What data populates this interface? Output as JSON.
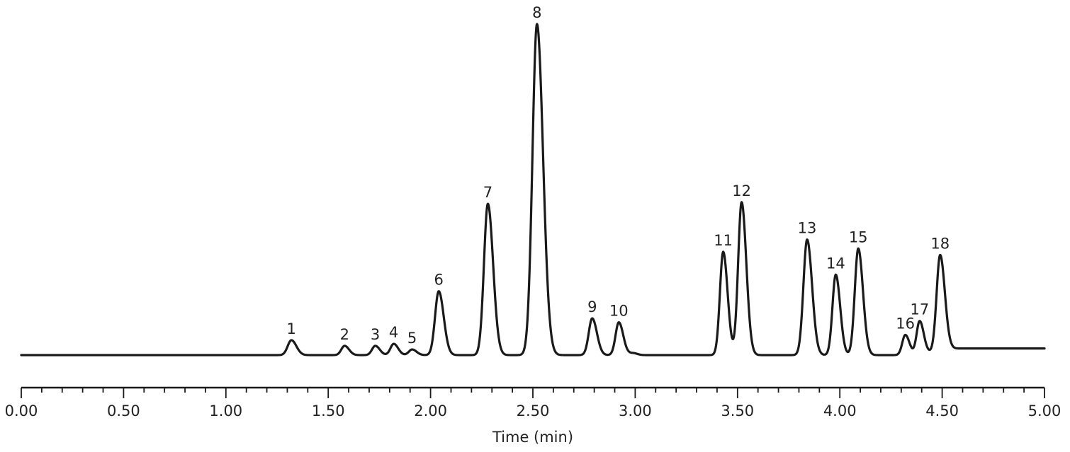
{
  "chart_data": {
    "type": "line",
    "title": "",
    "xlabel": "Time (min)",
    "ylabel": "",
    "xlim": [
      0.0,
      5.0
    ],
    "x_major_ticks": [
      0.0,
      0.5,
      1.0,
      1.5,
      2.0,
      2.5,
      3.0,
      3.5,
      4.0,
      4.5,
      5.0
    ],
    "x_tick_labels": [
      "0.00",
      "0.50",
      "1.00",
      "1.50",
      "2.00",
      "2.50",
      "3.00",
      "3.50",
      "4.00",
      "4.50",
      "5.00"
    ],
    "x_minor_tick_step": 0.1,
    "grid": false,
    "legend": null,
    "y_axis_visible": false,
    "baseline_relative": 0.0,
    "tail_baseline_relative": 0.02,
    "peaks": [
      {
        "label": "1",
        "time": 1.32,
        "height": 0.045,
        "width": 0.018
      },
      {
        "label": "2",
        "time": 1.58,
        "height": 0.028,
        "width": 0.016
      },
      {
        "label": "3",
        "time": 1.73,
        "height": 0.028,
        "width": 0.016
      },
      {
        "label": "4",
        "time": 1.82,
        "height": 0.034,
        "width": 0.016
      },
      {
        "label": "5",
        "time": 1.91,
        "height": 0.017,
        "width": 0.016
      },
      {
        "label": "6",
        "time": 2.04,
        "height": 0.193,
        "width": 0.018
      },
      {
        "label": "7",
        "time": 2.28,
        "height": 0.457,
        "width": 0.019
      },
      {
        "label": "8",
        "time": 2.52,
        "height": 1.0,
        "width": 0.022
      },
      {
        "label": "9",
        "time": 2.79,
        "height": 0.111,
        "width": 0.017
      },
      {
        "label": "10",
        "time": 2.92,
        "height": 0.099,
        "width": 0.016
      },
      {
        "label": "11",
        "time": 3.43,
        "height": 0.312,
        "width": 0.016
      },
      {
        "label": "12",
        "time": 3.52,
        "height": 0.462,
        "width": 0.017
      },
      {
        "label": "13",
        "time": 3.84,
        "height": 0.349,
        "width": 0.018
      },
      {
        "label": "14",
        "time": 3.98,
        "height": 0.243,
        "width": 0.016
      },
      {
        "label": "15",
        "time": 4.09,
        "height": 0.322,
        "width": 0.017
      },
      {
        "label": "16",
        "time": 4.32,
        "height": 0.061,
        "width": 0.015
      },
      {
        "label": "17",
        "time": 4.39,
        "height": 0.102,
        "width": 0.015
      },
      {
        "label": "18",
        "time": 4.49,
        "height": 0.285,
        "width": 0.017
      }
    ],
    "line_color": "#1a1a1a",
    "axis_color": "#1a1a1a"
  }
}
